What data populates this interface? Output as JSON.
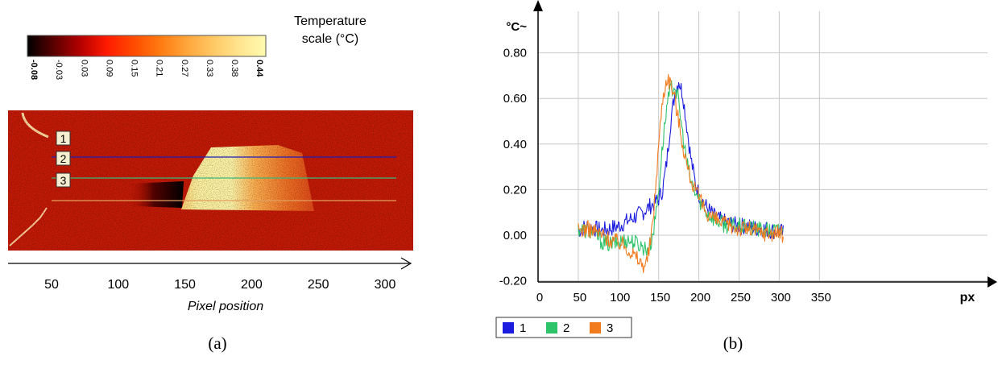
{
  "panel_a": {
    "caption": "(a)",
    "colorbar": {
      "title_line1": "Temperature",
      "title_line2": "scale (°C)",
      "ticks": [
        "-0.08",
        "-0.03",
        "0.03",
        "0.09",
        "0.15",
        "0.21",
        "0.27",
        "0.33",
        "0.38",
        "0.44"
      ],
      "colors": [
        "#000000",
        "#5a0000",
        "#b40000",
        "#ff1a00",
        "#ff4a00",
        "#ff7a10",
        "#ffa43a",
        "#ffc865",
        "#ffe58f",
        "#fffbb0"
      ]
    },
    "line_markers": [
      {
        "label": "1",
        "color": "#1f1fb8"
      },
      {
        "label": "2",
        "color": "#3cb878"
      },
      {
        "label": "3",
        "color": "#e3a060"
      }
    ],
    "x_axis": {
      "label": "Pixel position",
      "ticks": [
        50,
        100,
        150,
        200,
        250,
        300
      ]
    }
  },
  "chart_data": {
    "type": "line",
    "caption": "(b)",
    "ylabel": "°C~",
    "xlabel": "px",
    "xlim": [
      0,
      380
    ],
    "ylim": [
      -0.2,
      0.9
    ],
    "x_ticks": [
      0,
      50,
      100,
      150,
      200,
      250,
      300,
      350
    ],
    "y_ticks": [
      -0.2,
      0.0,
      0.2,
      0.4,
      0.6,
      0.8
    ],
    "y_tick_labels": [
      "-0.20",
      "0.00",
      "0.20",
      "0.40",
      "0.60",
      "0.80"
    ],
    "grid": true,
    "legend_position": "bottom-left",
    "series": [
      {
        "name": "1",
        "color": "#1c1ce0",
        "x": [
          50,
          60,
          70,
          80,
          90,
          100,
          110,
          120,
          130,
          140,
          145,
          150,
          155,
          160,
          165,
          170,
          175,
          180,
          185,
          190,
          195,
          200,
          210,
          220,
          230,
          240,
          250,
          260,
          270,
          280,
          290,
          300,
          305
        ],
        "y": [
          0.02,
          0.04,
          0.03,
          0.02,
          0.03,
          0.04,
          0.06,
          0.08,
          0.1,
          0.13,
          0.14,
          0.16,
          0.2,
          0.32,
          0.5,
          0.62,
          0.68,
          0.62,
          0.48,
          0.34,
          0.24,
          0.18,
          0.12,
          0.08,
          0.06,
          0.05,
          0.04,
          0.04,
          0.03,
          0.03,
          0.02,
          0.02,
          0.01
        ]
      },
      {
        "name": "2",
        "color": "#2ec46a",
        "x": [
          50,
          60,
          70,
          80,
          90,
          100,
          110,
          120,
          130,
          135,
          140,
          145,
          150,
          155,
          160,
          165,
          170,
          175,
          180,
          185,
          190,
          195,
          200,
          210,
          220,
          230,
          240,
          250,
          260,
          270,
          280,
          290,
          300,
          305
        ],
        "y": [
          0.03,
          0.02,
          0.01,
          -0.03,
          -0.04,
          -0.03,
          -0.02,
          -0.03,
          -0.05,
          -0.06,
          -0.04,
          0.05,
          0.2,
          0.4,
          0.56,
          0.64,
          0.66,
          0.58,
          0.44,
          0.32,
          0.24,
          0.19,
          0.16,
          0.1,
          0.07,
          0.05,
          0.04,
          0.04,
          0.03,
          0.03,
          0.02,
          0.02,
          0.02,
          0.01
        ]
      },
      {
        "name": "3",
        "color": "#f27b1e",
        "x": [
          50,
          60,
          70,
          80,
          90,
          100,
          110,
          120,
          125,
          130,
          135,
          140,
          145,
          150,
          155,
          160,
          165,
          170,
          175,
          180,
          185,
          190,
          195,
          200,
          210,
          220,
          230,
          240,
          250,
          260,
          270,
          280,
          290,
          300,
          305
        ],
        "y": [
          0.02,
          0.03,
          0.02,
          0.0,
          -0.02,
          -0.03,
          -0.05,
          -0.09,
          -0.11,
          -0.13,
          -0.12,
          -0.03,
          0.15,
          0.4,
          0.6,
          0.69,
          0.67,
          0.6,
          0.5,
          0.4,
          0.31,
          0.25,
          0.2,
          0.16,
          0.1,
          0.07,
          0.05,
          0.04,
          0.03,
          0.03,
          0.02,
          0.01,
          0.01,
          0.01,
          0.0
        ]
      }
    ]
  }
}
